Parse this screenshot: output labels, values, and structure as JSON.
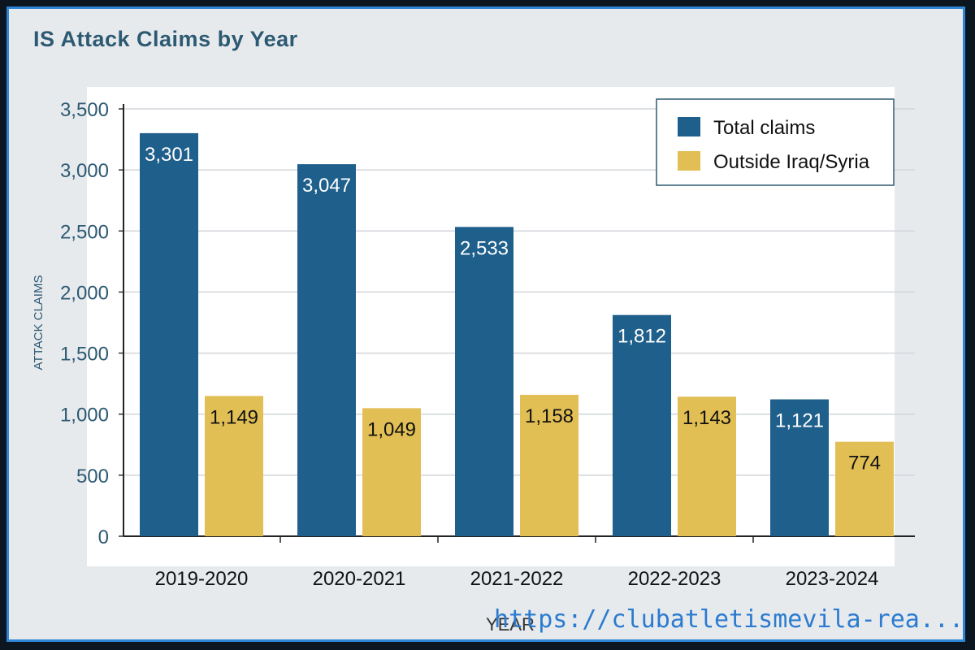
{
  "chart_data": {
    "type": "bar",
    "title": "IS Attack Claims by Year",
    "xlabel": "YEAR",
    "ylabel": "ATTACK CLAIMS",
    "categories": [
      "2019-2020",
      "2020-2021",
      "2021-2022",
      "2022-2023",
      "2023-2024"
    ],
    "series": [
      {
        "name": "Total claims",
        "values": [
          3301,
          3047,
          2533,
          1812,
          1121
        ],
        "color": "#1f5f8b"
      },
      {
        "name": "Outside Iraq/Syria",
        "values": [
          1149,
          1049,
          1158,
          1143,
          774
        ],
        "color": "#e2bf55"
      }
    ],
    "data_labels": [
      [
        "3,301",
        "3,047",
        "2,533",
        "1,812",
        "1,121"
      ],
      [
        "1,149",
        "1,049",
        "1,158",
        "1,143",
        "774"
      ]
    ],
    "yticks": [
      {
        "value": 0,
        "label": "0"
      },
      {
        "value": 500,
        "label": "500"
      },
      {
        "value": 1000,
        "label": "1,000"
      },
      {
        "value": 1500,
        "label": "1,500"
      },
      {
        "value": 2000,
        "label": "2,000"
      },
      {
        "value": 2500,
        "label": "2,500"
      },
      {
        "value": 3000,
        "label": "3,000"
      },
      {
        "value": 3500,
        "label": "3,500"
      }
    ],
    "ylim": [
      0,
      3500
    ],
    "grid": true,
    "legend": "top-right"
  },
  "watermark": "https://clubatletismevila-rea..."
}
